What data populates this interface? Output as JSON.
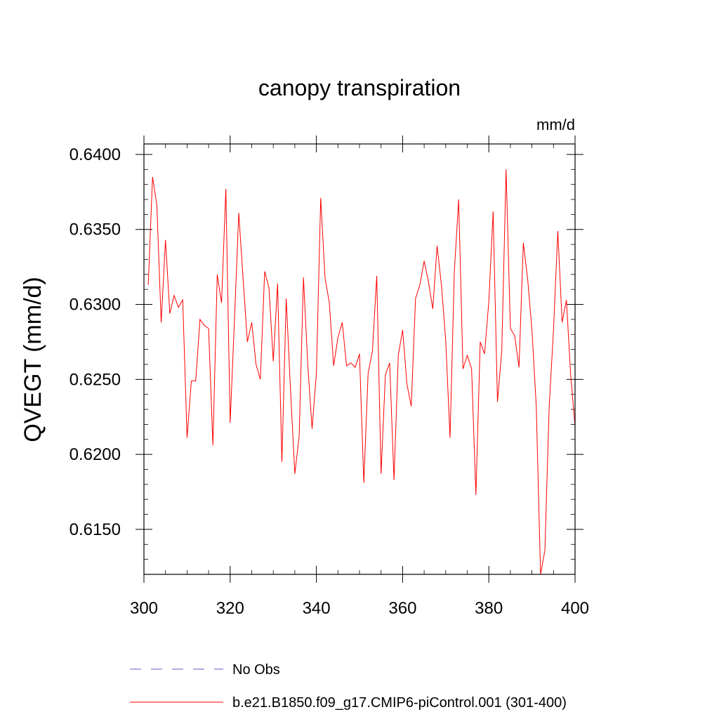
{
  "chart_data": {
    "type": "line",
    "title": "canopy transpiration",
    "units": "mm/d",
    "ylabel": "QVEGT  (mm/d)",
    "xlabel": "",
    "xlim": [
      300,
      400
    ],
    "ylim": [
      0.612,
      0.6407
    ],
    "x_ticks": [
      "300",
      "320",
      "340",
      "360",
      "380",
      "400"
    ],
    "y_ticks": [
      "0.6150",
      "0.6200",
      "0.6250",
      "0.6300",
      "0.6350",
      "0.6400"
    ],
    "grid": false,
    "legend_position": "bottom",
    "legend": [
      {
        "label": "No Obs",
        "color": "#6a5acd",
        "style": "dashed"
      },
      {
        "label": "b.e21.B1850.f09_g17.CMIP6-piControl.001 (301-400)",
        "color": "#ff0000",
        "style": "solid"
      }
    ],
    "series": [
      {
        "name": "b.e21.B1850.f09_g17.CMIP6-piControl.001 (301-400)",
        "color": "#ff0000",
        "x": [
          301,
          302,
          303,
          304,
          305,
          306,
          307,
          308,
          309,
          310,
          311,
          312,
          313,
          314,
          315,
          316,
          317,
          318,
          319,
          320,
          321,
          322,
          323,
          324,
          325,
          326,
          327,
          328,
          329,
          330,
          331,
          332,
          333,
          334,
          335,
          336,
          337,
          338,
          339,
          340,
          341,
          342,
          343,
          344,
          345,
          346,
          347,
          348,
          349,
          350,
          351,
          352,
          353,
          354,
          355,
          356,
          357,
          358,
          359,
          360,
          361,
          362,
          363,
          364,
          365,
          366,
          367,
          368,
          369,
          370,
          371,
          372,
          373,
          374,
          375,
          376,
          377,
          378,
          379,
          380,
          381,
          382,
          383,
          384,
          385,
          386,
          387,
          388,
          389,
          390,
          391,
          392,
          393,
          394,
          395,
          396,
          397,
          398,
          399,
          400
        ],
        "values": [
          0.6313,
          0.6385,
          0.6366,
          0.6288,
          0.6343,
          0.6294,
          0.6306,
          0.6298,
          0.6303,
          0.6211,
          0.6249,
          0.6249,
          0.629,
          0.6286,
          0.6284,
          0.6206,
          0.632,
          0.6301,
          0.6377,
          0.6221,
          0.629,
          0.6361,
          0.6317,
          0.6275,
          0.6288,
          0.626,
          0.625,
          0.6322,
          0.6311,
          0.6262,
          0.6314,
          0.6195,
          0.6304,
          0.6243,
          0.6187,
          0.6212,
          0.6318,
          0.626,
          0.6217,
          0.6254,
          0.6371,
          0.6318,
          0.6301,
          0.6259,
          0.6278,
          0.6288,
          0.6259,
          0.6261,
          0.6258,
          0.6267,
          0.6181,
          0.6254,
          0.6269,
          0.6319,
          0.6187,
          0.6253,
          0.6261,
          0.6183,
          0.6266,
          0.6283,
          0.6247,
          0.6232,
          0.6304,
          0.6313,
          0.6329,
          0.6315,
          0.6297,
          0.6339,
          0.6313,
          0.6276,
          0.6211,
          0.6322,
          0.637,
          0.6257,
          0.6266,
          0.6257,
          0.6173,
          0.6275,
          0.6267,
          0.6302,
          0.6362,
          0.6235,
          0.6269,
          0.639,
          0.6284,
          0.6279,
          0.6258,
          0.6341,
          0.6317,
          0.6283,
          0.6232,
          0.612,
          0.6136,
          0.6232,
          0.6283,
          0.6349,
          0.6288,
          0.6303,
          0.6252,
          0.6219
        ]
      }
    ]
  }
}
